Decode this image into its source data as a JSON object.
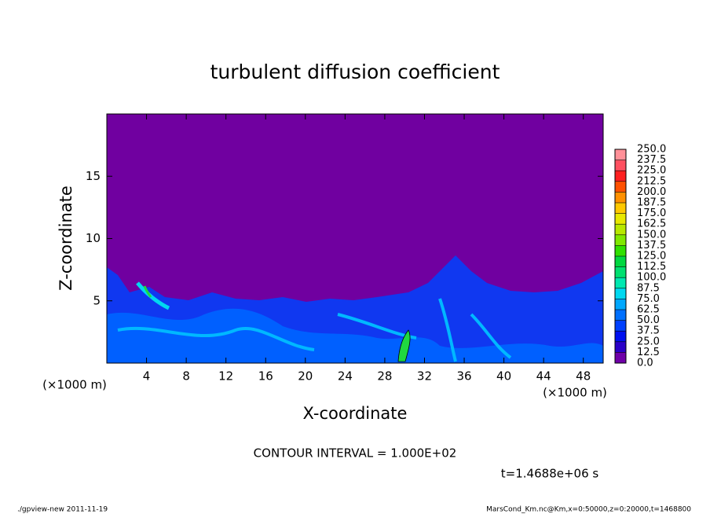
{
  "chart_data": {
    "type": "contour",
    "title": "turbulent diffusion coefficient",
    "xlabel": "X-coordinate",
    "ylabel": "Z-coordinate",
    "x_unit": "(×1000 m)",
    "xlim": [
      0,
      50
    ],
    "xticks": [
      4,
      8,
      12,
      16,
      20,
      24,
      28,
      32,
      36,
      40,
      44,
      48
    ],
    "ylim": [
      0,
      20
    ],
    "yticks": [
      5,
      10,
      15
    ],
    "colorbar": {
      "levels": [
        {
          "value": 0,
          "label": "0.0"
        },
        {
          "value": 12.5,
          "label": "12.5"
        },
        {
          "value": 25,
          "label": "25.0"
        },
        {
          "value": 37.5,
          "label": "37.5"
        },
        {
          "value": 50,
          "label": "50.0"
        },
        {
          "value": 62.5,
          "label": "62.5"
        },
        {
          "value": 75,
          "label": "75.0"
        },
        {
          "value": 87.5,
          "label": "87.5"
        },
        {
          "value": 100,
          "label": "100.0"
        },
        {
          "value": 112.5,
          "label": "112.5"
        },
        {
          "value": 125,
          "label": "125.0"
        },
        {
          "value": 137.5,
          "label": "137.5"
        },
        {
          "value": 150,
          "label": "150.0"
        },
        {
          "value": 162.5,
          "label": "162.5"
        },
        {
          "value": 175,
          "label": "175.0"
        },
        {
          "value": 187.5,
          "label": "187.5"
        },
        {
          "value": 200,
          "label": "200.0"
        },
        {
          "value": 212.5,
          "label": "212.5"
        },
        {
          "value": 225,
          "label": "225.0"
        },
        {
          "value": 237.5,
          "label": "237.5"
        },
        {
          "value": 250,
          "label": "250.0"
        }
      ],
      "colors": [
        "#6f00a8",
        "#2a00c8",
        "#0010f0",
        "#0040ff",
        "#0070ff",
        "#00a8ff",
        "#00d8f0",
        "#00e8b0",
        "#00e070",
        "#00d840",
        "#30e000",
        "#80e800",
        "#b8e800",
        "#e8e800",
        "#ffc800",
        "#ff9000",
        "#ff5000",
        "#ff2020",
        "#ff5060",
        "#ff9098"
      ]
    },
    "contour_interval": "CONTOUR INTERVAL = 1.000E+02",
    "time": "t=1.4688e+06 s",
    "footer_left": "./gpview-new   2011-11-19",
    "footer_right": "MarsCond_Km.nc@Km,x=0:50000,z=0:20000,t=1468800"
  }
}
